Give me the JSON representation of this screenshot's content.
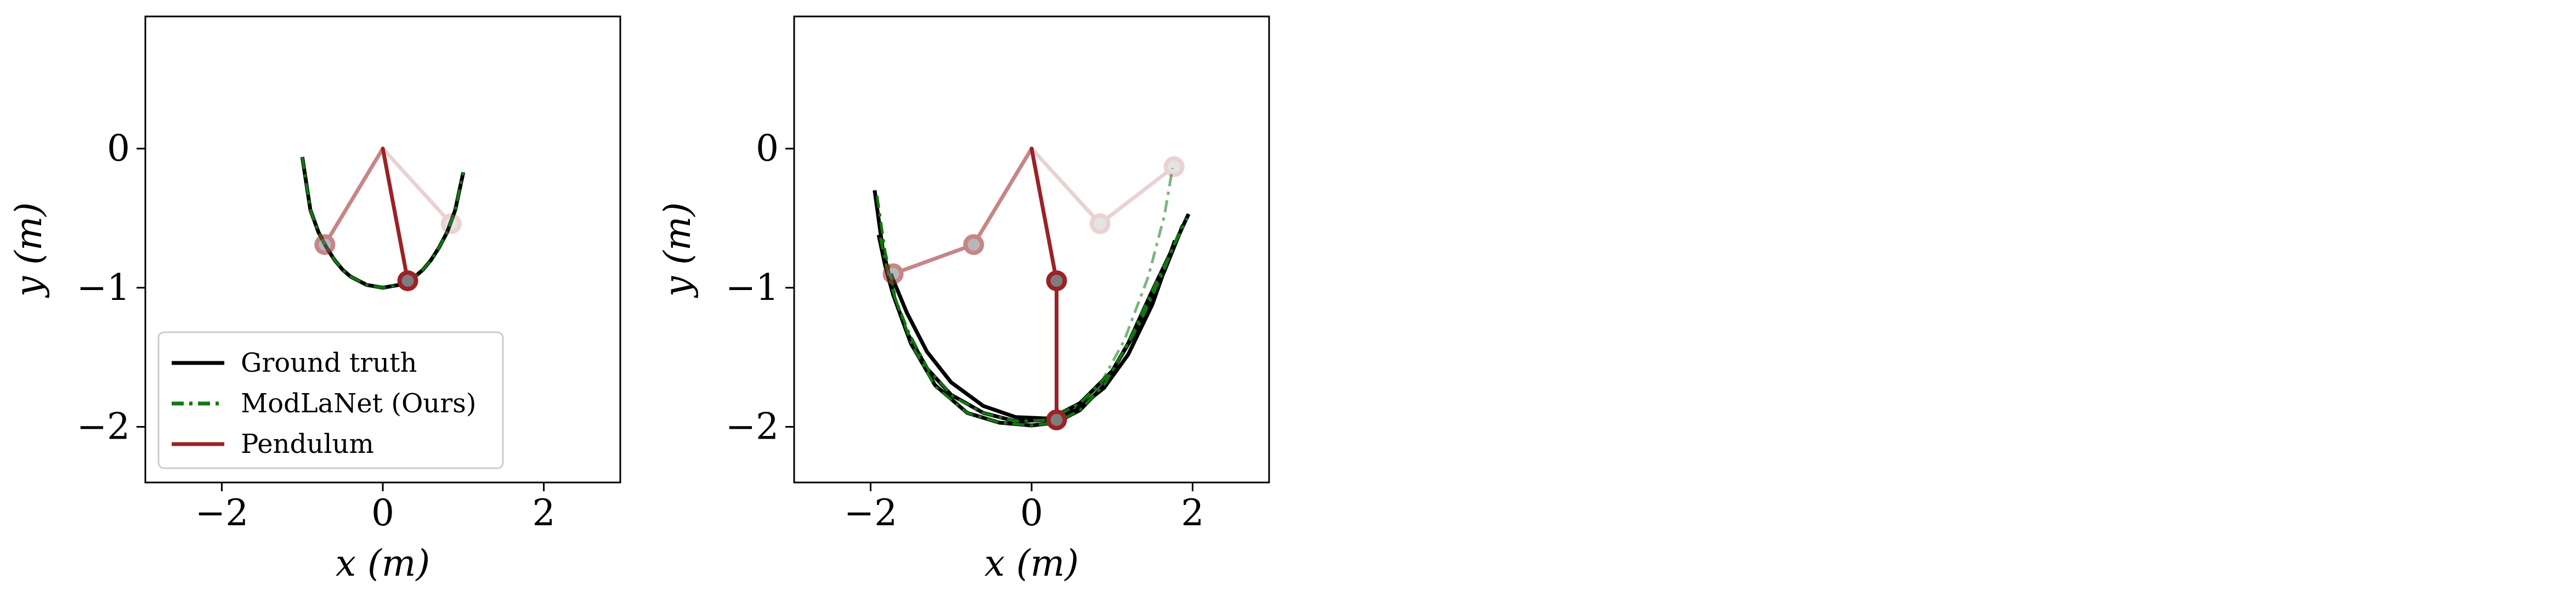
{
  "chart_data": [
    {
      "type": "line",
      "xlabel": "x (m)",
      "ylabel": "y (m)",
      "xlim": [
        -2.95,
        2.95
      ],
      "ylim": [
        -2.4,
        0.95
      ],
      "xticks": [
        -2,
        0,
        2
      ],
      "yticks": [
        0,
        -1,
        -2
      ],
      "xtick_labels": [
        "−2",
        "0",
        "2"
      ],
      "ytick_labels": [
        "0",
        "−1",
        "−2"
      ],
      "grid": false,
      "legend": {
        "position": "lower-left",
        "entries": [
          {
            "label": "Ground truth",
            "color": "#000000",
            "style": "solid"
          },
          {
            "label": "ModLaNet (Ours)",
            "color": "#117711",
            "style": "dashdot"
          },
          {
            "label": "Pendulum",
            "color": "#9b2226",
            "style": "solid"
          }
        ]
      },
      "ground_truth": {
        "x": [
          -1.0,
          -0.9,
          -0.8,
          -0.7,
          -0.6,
          -0.5,
          -0.4,
          -0.3,
          -0.2,
          -0.1,
          0.0,
          0.1,
          0.2,
          0.3,
          0.4,
          0.5,
          0.6,
          0.7,
          0.8,
          0.9,
          1.0
        ],
        "y": [
          -0.06,
          -0.44,
          -0.6,
          -0.71,
          -0.8,
          -0.87,
          -0.92,
          -0.95,
          -0.98,
          -0.99,
          -1.0,
          -0.99,
          -0.98,
          -0.95,
          -0.92,
          -0.87,
          -0.8,
          -0.71,
          -0.6,
          -0.44,
          -0.17
        ]
      },
      "modlanet": {
        "x": [
          -1.0,
          -0.9,
          -0.8,
          -0.7,
          -0.6,
          -0.5,
          -0.4,
          -0.3,
          -0.2,
          -0.1,
          0.0,
          0.1,
          0.2,
          0.3,
          0.4,
          0.5,
          0.6,
          0.7,
          0.8,
          0.9,
          1.0
        ],
        "y": [
          -0.06,
          -0.44,
          -0.6,
          -0.71,
          -0.8,
          -0.87,
          -0.92,
          -0.95,
          -0.98,
          -0.99,
          -1.0,
          -0.99,
          -0.98,
          -0.95,
          -0.92,
          -0.87,
          -0.8,
          -0.71,
          -0.6,
          -0.44,
          -0.17
        ]
      },
      "pendulum_snapshots": [
        {
          "links": [
            [
              0,
              0
            ],
            [
              0.85,
              -0.54
            ]
          ],
          "alpha": 0.2
        },
        {
          "links": [
            [
              0,
              0
            ],
            [
              -0.72,
              -0.69
            ]
          ],
          "alpha": 0.55
        },
        {
          "links": [
            [
              0,
              0
            ],
            [
              0.31,
              -0.95
            ]
          ],
          "alpha": 1.0
        }
      ],
      "pendulum_color": "#9b2226",
      "bob_fill": "#7d7d7d"
    },
    {
      "type": "line",
      "xlabel": "x (m)",
      "ylabel": "y (m)",
      "xlim": [
        -2.95,
        2.95
      ],
      "ylim": [
        -2.4,
        0.95
      ],
      "xticks": [
        -2,
        0,
        2
      ],
      "yticks": [
        0,
        -1,
        -2
      ],
      "xtick_labels": [
        "−2",
        "0",
        "2"
      ],
      "ytick_labels": [
        "0",
        "−1",
        "−2"
      ],
      "grid": false,
      "ground_truth_strands": [
        {
          "x": [
            -1.95,
            -1.85,
            -1.7,
            -1.5,
            -1.2,
            -0.8,
            -0.4,
            0.0,
            0.3,
            0.6,
            0.9,
            1.2,
            1.5,
            1.75,
            1.95
          ],
          "y": [
            -0.3,
            -0.72,
            -1.08,
            -1.4,
            -1.7,
            -1.9,
            -1.97,
            -1.99,
            -1.97,
            -1.88,
            -1.7,
            -1.4,
            -1.02,
            -0.72,
            -0.47
          ]
        },
        {
          "x": [
            -1.9,
            -1.82,
            -1.72,
            -1.55,
            -1.3,
            -1.0,
            -0.6,
            -0.2,
            0.2,
            0.6,
            1.0,
            1.35,
            1.65,
            1.88
          ],
          "y": [
            -0.62,
            -0.84,
            -1.05,
            -1.32,
            -1.58,
            -1.77,
            -1.9,
            -1.96,
            -1.95,
            -1.83,
            -1.6,
            -1.26,
            -0.88,
            -0.55
          ]
        },
        {
          "x": [
            -1.75,
            -1.55,
            -1.3,
            -1.0,
            -0.6,
            -0.2,
            0.2,
            0.55,
            0.9,
            1.2,
            1.5,
            1.78
          ],
          "y": [
            -0.9,
            -1.18,
            -1.46,
            -1.68,
            -1.85,
            -1.93,
            -1.94,
            -1.88,
            -1.72,
            -1.48,
            -1.12,
            -0.66
          ]
        }
      ],
      "modlanet_strands": [
        {
          "x": [
            -1.92,
            -1.82,
            -1.68,
            -1.48,
            -1.2,
            -0.8,
            -0.4,
            0.0,
            0.3,
            0.6,
            0.9,
            1.2,
            1.5,
            1.75,
            1.93
          ],
          "y": [
            -0.34,
            -0.74,
            -1.1,
            -1.42,
            -1.71,
            -1.9,
            -1.97,
            -1.99,
            -1.97,
            -1.88,
            -1.7,
            -1.4,
            -1.02,
            -0.72,
            -0.5
          ]
        },
        {
          "x": [
            -1.88,
            -1.8,
            -1.7,
            -1.52,
            -1.28,
            -0.98,
            -0.6,
            -0.2,
            0.2,
            0.6,
            1.0,
            1.34,
            1.64,
            1.86
          ],
          "y": [
            -0.64,
            -0.86,
            -1.07,
            -1.33,
            -1.59,
            -1.78,
            -1.9,
            -1.96,
            -1.95,
            -1.83,
            -1.6,
            -1.26,
            -0.88,
            -0.56
          ]
        },
        {
          "x": [
            0.35,
            0.8,
            1.15,
            1.45,
            1.65,
            1.75
          ],
          "y": [
            -1.92,
            -1.75,
            -1.38,
            -0.92,
            -0.48,
            -0.14
          ]
        }
      ],
      "pendulum_snapshots": [
        {
          "links": [
            [
              0,
              0
            ],
            [
              0.85,
              -0.54
            ],
            [
              1.77,
              -0.13
            ]
          ],
          "alpha": 0.2
        },
        {
          "links": [
            [
              0,
              0
            ],
            [
              -0.72,
              -0.69
            ],
            [
              -1.72,
              -0.9
            ]
          ],
          "alpha": 0.55
        },
        {
          "links": [
            [
              0,
              0
            ],
            [
              0.31,
              -0.95
            ],
            [
              0.31,
              -1.95
            ]
          ],
          "alpha": 1.0
        }
      ],
      "pendulum_color": "#9b2226",
      "bob_fill": "#7d7d7d"
    }
  ]
}
